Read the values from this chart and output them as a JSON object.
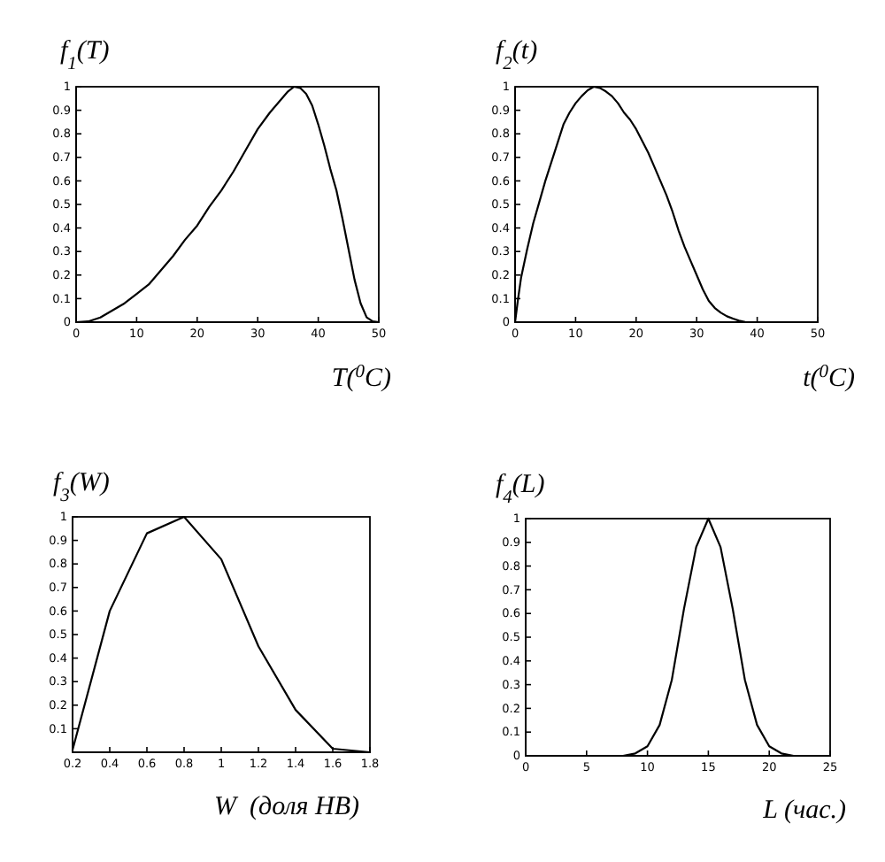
{
  "chart_data": [
    {
      "type": "line",
      "ylabel": "f$_{1}$(T)",
      "xlabel": "T($^{0}$C)",
      "color": "#000000",
      "xlim": [
        0,
        50
      ],
      "ylim": [
        0,
        1
      ],
      "xticks": [
        0,
        10,
        20,
        30,
        40,
        50
      ],
      "yticks": [
        0,
        0.1,
        0.2,
        0.3,
        0.4,
        0.5,
        0.6,
        0.7,
        0.8,
        0.9,
        1
      ],
      "x": [
        0,
        2,
        4,
        6,
        8,
        10,
        12,
        14,
        16,
        18,
        20,
        22,
        24,
        26,
        28,
        30,
        32,
        34,
        35,
        36,
        37,
        38,
        39,
        40,
        41,
        42,
        43,
        44,
        45,
        46,
        47,
        48,
        49,
        50
      ],
      "values": [
        0,
        0.003,
        0.02,
        0.05,
        0.08,
        0.12,
        0.16,
        0.22,
        0.28,
        0.35,
        0.41,
        0.49,
        0.56,
        0.64,
        0.73,
        0.82,
        0.89,
        0.95,
        0.98,
        1,
        0.995,
        0.97,
        0.92,
        0.84,
        0.75,
        0.65,
        0.56,
        0.44,
        0.31,
        0.18,
        0.08,
        0.02,
        0.003,
        0
      ]
    },
    {
      "type": "line",
      "ylabel": "f$_{2}$(t)",
      "xlabel": "t($^{0}$C)",
      "color": "#000000",
      "xlim": [
        0,
        50
      ],
      "ylim": [
        0,
        1
      ],
      "xticks": [
        0,
        10,
        20,
        30,
        40,
        50
      ],
      "yticks": [
        0,
        0.1,
        0.2,
        0.3,
        0.4,
        0.5,
        0.6,
        0.7,
        0.8,
        0.9,
        1
      ],
      "x": [
        0,
        0.5,
        1,
        2,
        3,
        4,
        5,
        6,
        7,
        8,
        9,
        10,
        11,
        12,
        13,
        14,
        15,
        16,
        17,
        18,
        19,
        20,
        21,
        22,
        23,
        24,
        25,
        26,
        27,
        28,
        29,
        30,
        31,
        32,
        33,
        34,
        35,
        36,
        37,
        38,
        39,
        50
      ],
      "values": [
        0,
        0.1,
        0.19,
        0.31,
        0.42,
        0.51,
        0.6,
        0.68,
        0.76,
        0.84,
        0.89,
        0.93,
        0.96,
        0.985,
        1,
        0.995,
        0.98,
        0.96,
        0.93,
        0.89,
        0.86,
        0.82,
        0.77,
        0.72,
        0.66,
        0.6,
        0.54,
        0.47,
        0.39,
        0.32,
        0.26,
        0.2,
        0.14,
        0.09,
        0.06,
        0.04,
        0.025,
        0.015,
        0.006,
        0.001,
        0,
        0
      ]
    },
    {
      "type": "line",
      "ylabel": "f$_{3}$(W)",
      "xlabel": "W  (доля НВ)",
      "color": "#000000",
      "xlim": [
        0.2,
        1.8
      ],
      "ylim": [
        0,
        1
      ],
      "xticks": [
        0.2,
        0.4,
        0.6,
        0.8,
        1,
        1.2,
        1.4,
        1.6,
        1.8
      ],
      "yticks": [
        {
          "value": 0,
          "label": null
        },
        0.1,
        0.2,
        0.3,
        0.4,
        0.5,
        0.6,
        0.7,
        0.8,
        0.9,
        1
      ],
      "x": [
        0.2,
        0.4,
        0.6,
        0.8,
        1,
        1.2,
        1.4,
        1.6,
        1.8
      ],
      "values": [
        0.01,
        0.6,
        0.93,
        1,
        0.82,
        0.45,
        0.18,
        0.015,
        0
      ]
    },
    {
      "type": "line",
      "ylabel": "f$_{4}$(L)",
      "xlabel": "L (час.)",
      "color": "#000000",
      "xlim": [
        0,
        25
      ],
      "ylim": [
        0,
        1
      ],
      "xticks": [
        0,
        5,
        10,
        15,
        20,
        25
      ],
      "yticks": [
        0,
        0.1,
        0.2,
        0.3,
        0.4,
        0.5,
        0.6,
        0.7,
        0.8,
        0.9,
        1
      ],
      "x": [
        0,
        8,
        9,
        10,
        11,
        12,
        13,
        14,
        15,
        16,
        17,
        18,
        19,
        20,
        21,
        22,
        25
      ],
      "values": [
        0,
        0,
        0.01,
        0.04,
        0.13,
        0.32,
        0.62,
        0.88,
        1,
        0.88,
        0.62,
        0.32,
        0.13,
        0.04,
        0.01,
        0,
        0
      ]
    }
  ]
}
